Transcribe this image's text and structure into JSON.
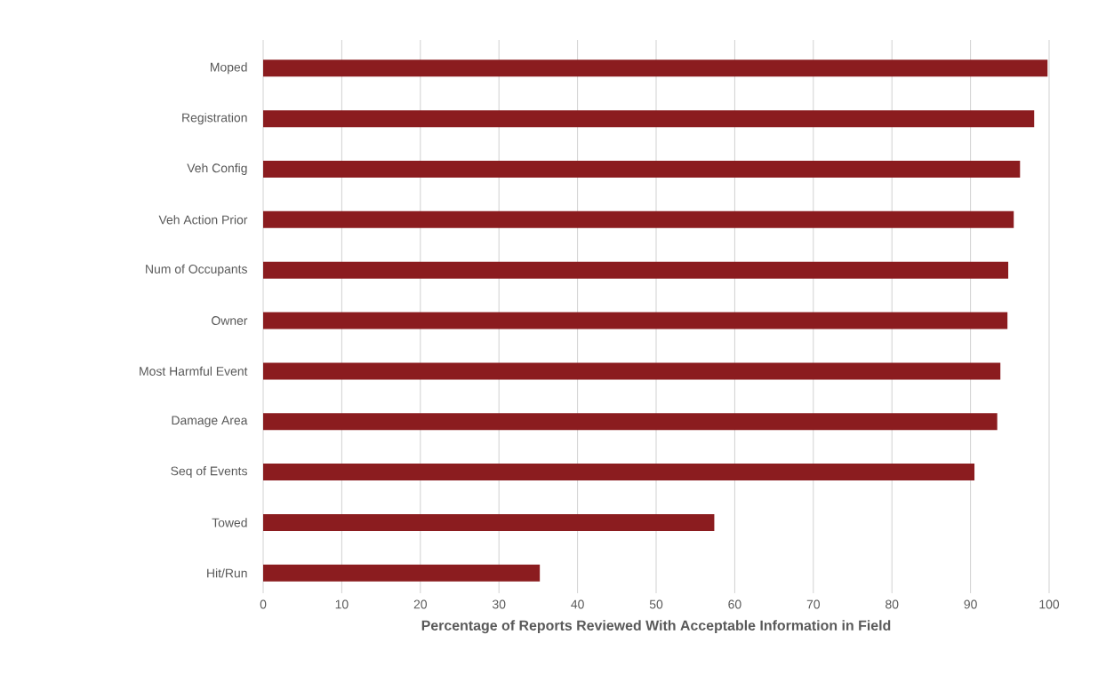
{
  "chart_data": {
    "type": "bar",
    "orientation": "horizontal",
    "xlabel": "Percentage of Reports Reviewed With Acceptable Information in Field",
    "categories": [
      "Moped",
      "Registration",
      "Veh Config",
      "Veh Action Prior",
      "Num of Occupants",
      "Owner",
      "Most Harmful Event",
      "Damage Area",
      "Seq of Events",
      "Towed",
      "Hit/Run"
    ],
    "values": [
      99.8,
      98.1,
      96.3,
      95.5,
      94.8,
      94.7,
      93.8,
      93.4,
      90.5,
      57.4,
      35.2
    ],
    "color": "#8b1c1f",
    "xlim": [
      0,
      100
    ],
    "xticks": [
      0,
      10,
      20,
      30,
      40,
      50,
      60,
      70,
      80,
      90,
      100
    ],
    "grid": "x"
  }
}
